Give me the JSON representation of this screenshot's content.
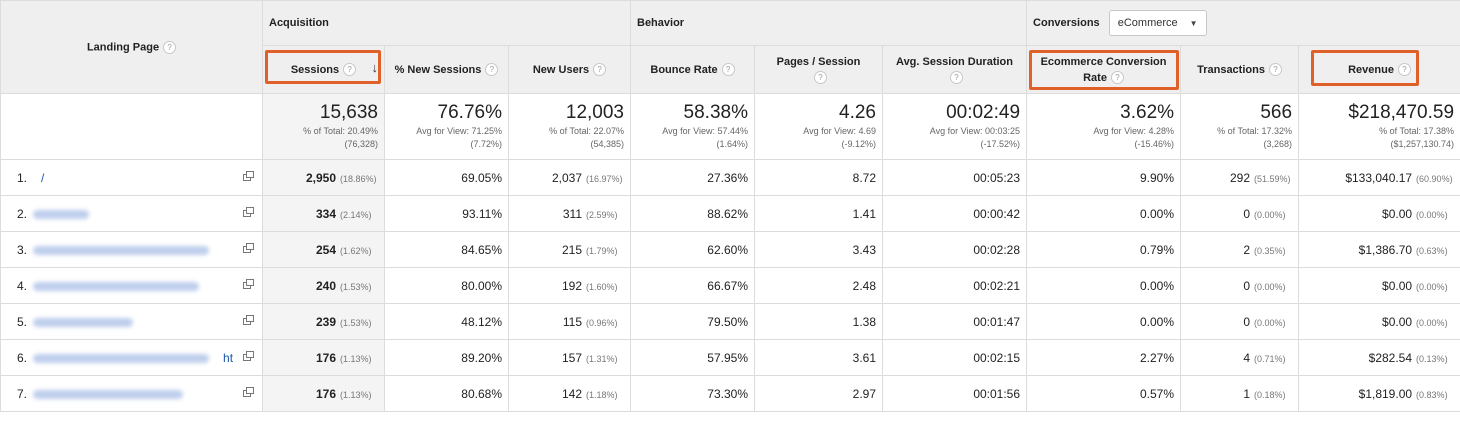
{
  "header": {
    "landing_page": "Landing Page",
    "groups": {
      "acquisition": "Acquisition",
      "behavior": "Behavior",
      "conversions": "Conversions"
    },
    "conversions_select": {
      "value": "eCommerce"
    },
    "columns": {
      "sessions": "Sessions",
      "pct_new_sessions": "% New Sessions",
      "new_users": "New Users",
      "bounce_rate": "Bounce Rate",
      "pages_session": "Pages / Session",
      "avg_duration": "Avg. Session Duration",
      "ecom_rate_l1": "Ecommerce Conversion",
      "ecom_rate_l2": "Rate",
      "transactions": "Transactions",
      "revenue": "Revenue"
    },
    "help_glyph": "?",
    "sort_glyph": "↓"
  },
  "totals": {
    "sessions": {
      "value": "15,638",
      "sub1": "% of Total: 20.49%",
      "sub2": "(76,328)"
    },
    "pct_new_sessions": {
      "value": "76.76%",
      "sub1": "Avg for View: 71.25%",
      "sub2": "(7.72%)"
    },
    "new_users": {
      "value": "12,003",
      "sub1": "% of Total: 22.07%",
      "sub2": "(54,385)"
    },
    "bounce_rate": {
      "value": "58.38%",
      "sub1": "Avg for View: 57.44%",
      "sub2": "(1.64%)"
    },
    "pages_session": {
      "value": "4.26",
      "sub1": "Avg for View: 4.69",
      "sub2": "(-9.12%)"
    },
    "avg_duration": {
      "value": "00:02:49",
      "sub1": "Avg for View: 00:03:25",
      "sub2": "(-17.52%)"
    },
    "ecom_rate": {
      "value": "3.62%",
      "sub1": "Avg for View: 4.28%",
      "sub2": "(-15.46%)"
    },
    "transactions": {
      "value": "566",
      "sub1": "% of Total: 17.32%",
      "sub2": "(3,268)"
    },
    "revenue": {
      "value": "$218,470.59",
      "sub1": "% of Total: 17.38%",
      "sub2": "($1,257,130.74)"
    }
  },
  "rows": [
    {
      "idx": "1.",
      "page": "/",
      "sessions": "2,950",
      "sessions_pct": "(18.86%)",
      "pct_new": "69.05%",
      "new_users": "2,037",
      "new_users_pct": "(16.97%)",
      "bounce": "27.36%",
      "pps": "8.72",
      "dur": "00:05:23",
      "ecr": "9.90%",
      "tx": "292",
      "tx_pct": "(51.59%)",
      "rev": "$133,040.17",
      "rev_pct": "(60.90%)"
    },
    {
      "idx": "2.",
      "page": "",
      "sessions": "334",
      "sessions_pct": "(2.14%)",
      "pct_new": "93.11%",
      "new_users": "311",
      "new_users_pct": "(2.59%)",
      "bounce": "88.62%",
      "pps": "1.41",
      "dur": "00:00:42",
      "ecr": "0.00%",
      "tx": "0",
      "tx_pct": "(0.00%)",
      "rev": "$0.00",
      "rev_pct": "(0.00%)"
    },
    {
      "idx": "3.",
      "page": "",
      "sessions": "254",
      "sessions_pct": "(1.62%)",
      "pct_new": "84.65%",
      "new_users": "215",
      "new_users_pct": "(1.79%)",
      "bounce": "62.60%",
      "pps": "3.43",
      "dur": "00:02:28",
      "ecr": "0.79%",
      "tx": "2",
      "tx_pct": "(0.35%)",
      "rev": "$1,386.70",
      "rev_pct": "(0.63%)"
    },
    {
      "idx": "4.",
      "page": "",
      "sessions": "240",
      "sessions_pct": "(1.53%)",
      "pct_new": "80.00%",
      "new_users": "192",
      "new_users_pct": "(1.60%)",
      "bounce": "66.67%",
      "pps": "2.48",
      "dur": "00:02:21",
      "ecr": "0.00%",
      "tx": "0",
      "tx_pct": "(0.00%)",
      "rev": "$0.00",
      "rev_pct": "(0.00%)"
    },
    {
      "idx": "5.",
      "page": "",
      "sessions": "239",
      "sessions_pct": "(1.53%)",
      "pct_new": "48.12%",
      "new_users": "115",
      "new_users_pct": "(0.96%)",
      "bounce": "79.50%",
      "pps": "1.38",
      "dur": "00:01:47",
      "ecr": "0.00%",
      "tx": "0",
      "tx_pct": "(0.00%)",
      "rev": "$0.00",
      "rev_pct": "(0.00%)"
    },
    {
      "idx": "6.",
      "page": "ht",
      "sessions": "176",
      "sessions_pct": "(1.13%)",
      "pct_new": "89.20%",
      "new_users": "157",
      "new_users_pct": "(1.31%)",
      "bounce": "57.95%",
      "pps": "3.61",
      "dur": "00:02:15",
      "ecr": "2.27%",
      "tx": "4",
      "tx_pct": "(0.71%)",
      "rev": "$282.54",
      "rev_pct": "(0.13%)"
    },
    {
      "idx": "7.",
      "page": "",
      "sessions": "176",
      "sessions_pct": "(1.13%)",
      "pct_new": "80.68%",
      "new_users": "142",
      "new_users_pct": "(1.18%)",
      "bounce": "73.30%",
      "pps": "2.97",
      "dur": "00:01:56",
      "ecr": "0.57%",
      "tx": "1",
      "tx_pct": "(0.18%)",
      "rev": "$1,819.00",
      "rev_pct": "(0.83%)"
    }
  ],
  "colors": {
    "highlight": "#e0602a",
    "link": "#1a57a8",
    "header_bg": "#efefef"
  }
}
